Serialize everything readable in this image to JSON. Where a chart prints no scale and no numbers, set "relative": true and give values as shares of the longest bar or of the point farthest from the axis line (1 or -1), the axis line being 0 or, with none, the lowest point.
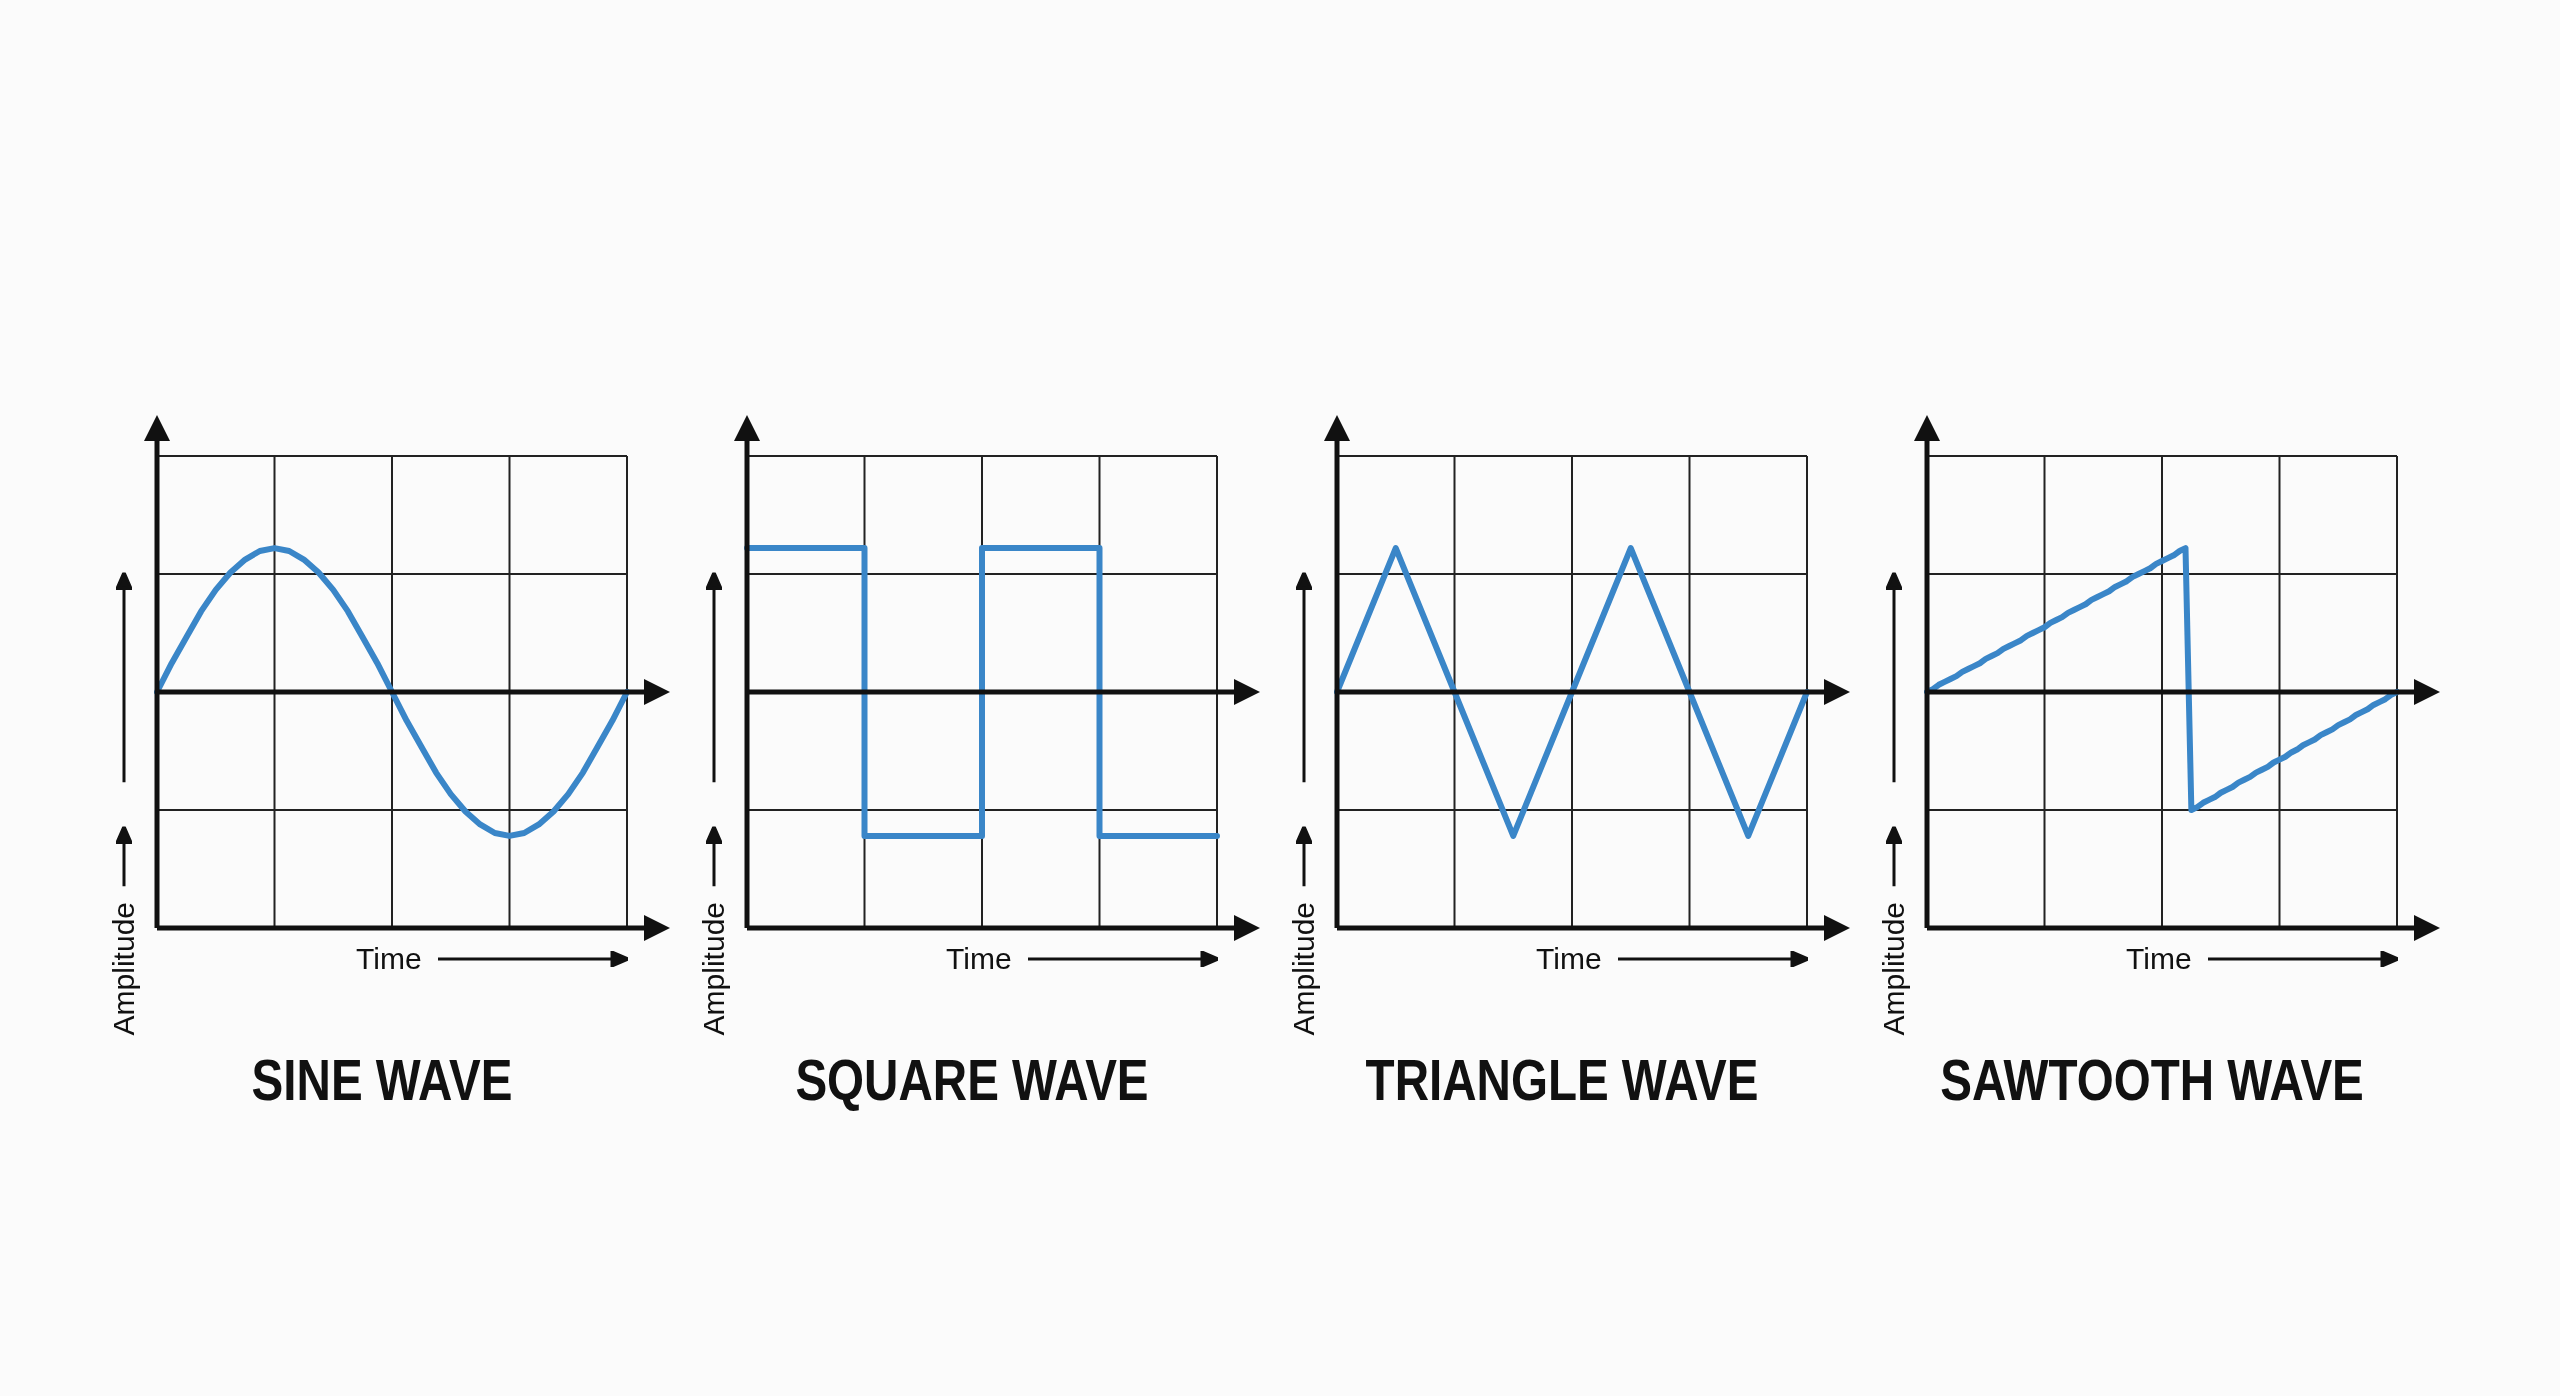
{
  "chart_data": [
    {
      "type": "line",
      "title": "SINE WAVE",
      "xlabel": "Time",
      "ylabel": "Amplitude",
      "relative": true,
      "grid": true,
      "tick_labels": false,
      "categories": [
        null,
        null,
        null,
        null,
        null,
        null,
        null,
        null,
        null,
        null,
        null,
        null,
        null,
        null,
        null,
        null,
        null,
        null,
        null,
        null,
        null,
        null,
        null,
        null,
        null,
        null,
        null,
        null,
        null,
        null,
        null,
        null,
        null
      ],
      "series": [
        {
          "color": "#3a86c8",
          "values": [
            0,
            0.2,
            0.38,
            0.56,
            0.71,
            0.83,
            0.92,
            0.98,
            1,
            0.98,
            0.92,
            0.83,
            0.71,
            0.56,
            0.38,
            0.2,
            0,
            -0.2,
            -0.38,
            -0.56,
            -0.71,
            -0.83,
            -0.92,
            -0.98,
            -1,
            -0.98,
            -0.92,
            -0.83,
            -0.71,
            -0.56,
            -0.38,
            -0.2,
            0
          ]
        }
      ]
    },
    {
      "type": "step",
      "title": "SQUARE WAVE",
      "xlabel": "Time",
      "ylabel": "Amplitude",
      "relative": true,
      "grid": true,
      "tick_labels": false,
      "categories": [
        null,
        null,
        null,
        null,
        null
      ],
      "series": [
        {
          "color": "#3a86c8",
          "values": [
            1,
            -1,
            1,
            -1,
            -1
          ]
        }
      ]
    },
    {
      "type": "line",
      "title": "TRIANGLE WAVE",
      "xlabel": "Time",
      "ylabel": "Amplitude",
      "relative": true,
      "grid": true,
      "tick_labels": false,
      "categories": [
        null,
        null,
        null,
        null,
        null,
        null,
        null,
        null,
        null
      ],
      "series": [
        {
          "color": "#3a86c8",
          "values": [
            0,
            1,
            0,
            -1,
            0,
            1,
            0,
            -1,
            0
          ]
        }
      ]
    },
    {
      "type": "line",
      "title": "SAWTOOTH WAVE",
      "xlabel": "Time",
      "ylabel": "Amplitude",
      "relative": true,
      "grid": true,
      "tick_labels": false,
      "categories": [
        null,
        null,
        null,
        null,
        null,
        null,
        null,
        null,
        null,
        null,
        null,
        null,
        null,
        null,
        null,
        null,
        null,
        null,
        null,
        null,
        null,
        null,
        null,
        null,
        null,
        null,
        null,
        null,
        null,
        null,
        null,
        null,
        null,
        null,
        null,
        null,
        null,
        null,
        null,
        null,
        null,
        null,
        null,
        null,
        null,
        null,
        null,
        null,
        null,
        null,
        null,
        null,
        null,
        null,
        null,
        null,
        null,
        null,
        null,
        null,
        null,
        null,
        null,
        null,
        null,
        null,
        null,
        null,
        null,
        null,
        null,
        null,
        null,
        null,
        null,
        null,
        null,
        null,
        null,
        null,
        null
      ],
      "series": [
        {
          "color": "#3a86c8",
          "values": [
            0,
            0.02,
            0.05,
            0.07,
            0.09,
            0.11,
            0.14,
            0.16,
            0.18,
            0.2,
            0.23,
            0.25,
            0.27,
            0.3,
            0.32,
            0.34,
            0.36,
            0.39,
            0.41,
            0.43,
            0.45,
            0.48,
            0.5,
            0.52,
            0.55,
            0.57,
            0.59,
            0.61,
            0.64,
            0.66,
            0.68,
            0.7,
            0.73,
            0.75,
            0.77,
            0.8,
            0.82,
            0.84,
            0.86,
            0.89,
            0.91,
            0.93,
            0.95,
            0.98,
            1,
            -0.82,
            -0.8,
            -0.77,
            -0.75,
            -0.73,
            -0.7,
            -0.68,
            -0.66,
            -0.63,
            -0.61,
            -0.59,
            -0.56,
            -0.54,
            -0.52,
            -0.49,
            -0.47,
            -0.45,
            -0.42,
            -0.4,
            -0.37,
            -0.35,
            -0.33,
            -0.3,
            -0.28,
            -0.26,
            -0.23,
            -0.21,
            -0.19,
            -0.16,
            -0.14,
            -0.12,
            -0.09,
            -0.07,
            -0.05,
            -0.02,
            0
          ]
        }
      ]
    }
  ]
}
